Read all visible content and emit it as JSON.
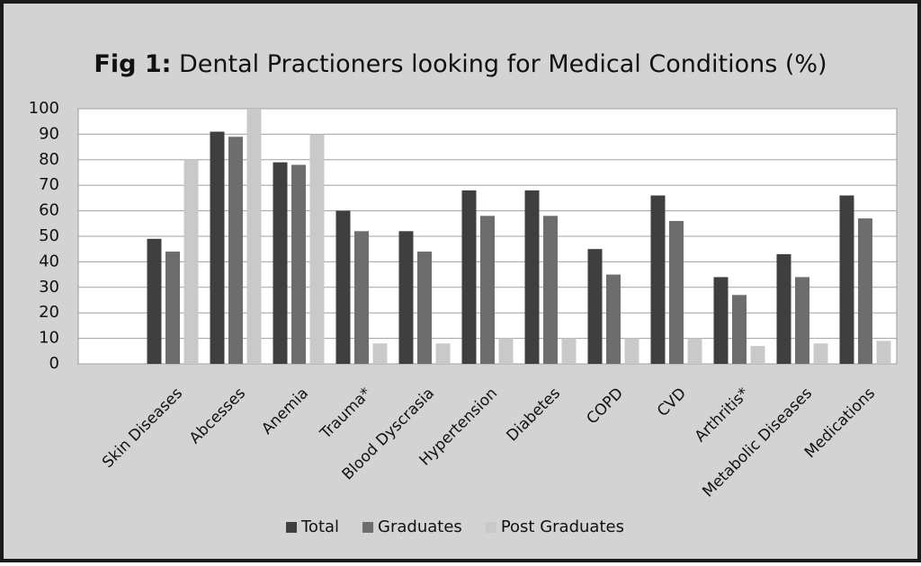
{
  "chart_data": {
    "type": "bar",
    "title_label": "Fig 1:",
    "title": "Dental Practioners looking for Medical Conditions (%)",
    "categories": [
      null,
      "Skin Diseases",
      "Abcesses",
      "Anemia",
      "Trauma*",
      "Blood Dyscrasia",
      "Hypertension",
      "Diabetes",
      "COPD",
      "CVD",
      "Arthritis*",
      "Metabolic Diseases",
      "Medications"
    ],
    "series": [
      {
        "name": "Total",
        "color": "#3f3f3f",
        "values": [
          null,
          49,
          91,
          79,
          60,
          52,
          68,
          68,
          45,
          66,
          34,
          43,
          66
        ]
      },
      {
        "name": "Graduates",
        "color": "#6d6d6d",
        "values": [
          null,
          44,
          89,
          78,
          52,
          44,
          58,
          58,
          35,
          56,
          27,
          34,
          57
        ]
      },
      {
        "name": "Post Graduates",
        "color": "#c9c9c9",
        "values": [
          null,
          80,
          100,
          90,
          8,
          8,
          10,
          10,
          10,
          10,
          7,
          8,
          9
        ]
      }
    ],
    "ylim": [
      0,
      100
    ],
    "yticks": [
      0,
      10,
      20,
      30,
      40,
      50,
      60,
      70,
      80,
      90,
      100
    ],
    "grid": true,
    "legend": "bottom"
  }
}
